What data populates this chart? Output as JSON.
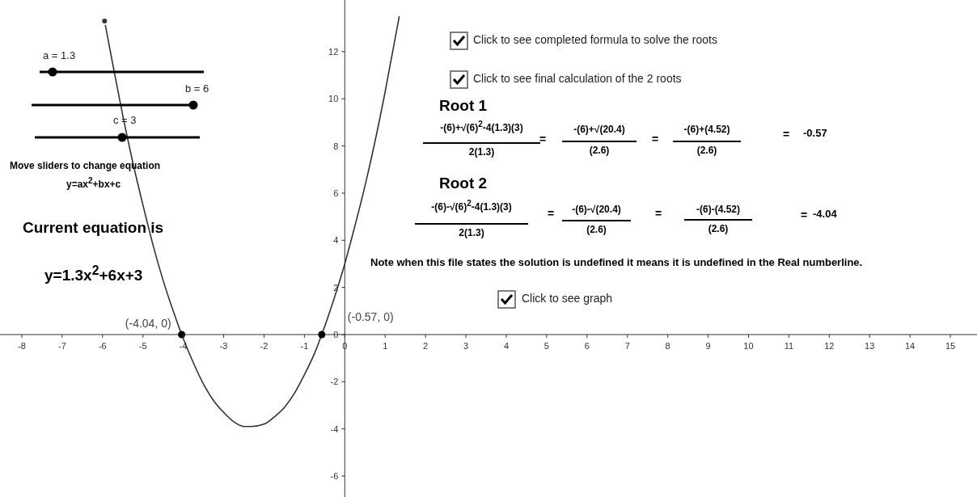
{
  "chart_data": {
    "type": "line",
    "xlim": [
      -8.54,
      15.66
    ],
    "ylim": [
      -6.89,
      14.19
    ],
    "xticks": [
      -8,
      -7,
      -6,
      -5,
      -4,
      -3,
      -2,
      -1,
      0,
      1,
      2,
      3,
      4,
      5,
      6,
      7,
      8,
      9,
      10,
      11,
      12,
      13,
      14,
      15
    ],
    "yticks": [
      -6,
      -4,
      -2,
      0,
      2,
      4,
      6,
      8,
      10,
      12
    ],
    "grid": false,
    "legend": false,
    "series": [
      {
        "color": "#333333",
        "marker": "none",
        "line_style": "solid",
        "x": [
          -5.95,
          -5.75,
          -5.5,
          -5.25,
          -5.0,
          -4.75,
          -4.5,
          -4.25,
          -4.04,
          -3.75,
          -3.5,
          -3.25,
          -3.0,
          -2.75,
          -2.5,
          -2.31,
          -2.0,
          -1.75,
          -1.5,
          -1.25,
          -1.0,
          -0.75,
          -0.57,
          -0.25,
          0,
          0.25,
          0.5,
          0.75,
          1.0,
          1.35
        ],
        "values": [
          13.3,
          11.5,
          9.3,
          7.3,
          5.5,
          3.8,
          2.3,
          1.0,
          0,
          -1.2,
          -2.1,
          -2.8,
          -3.3,
          -3.7,
          -3.9,
          -3.9,
          -3.8,
          -3.5,
          -3.1,
          -2.5,
          -1.7,
          -0.8,
          0,
          1.6,
          3,
          4.6,
          6.3,
          8.2,
          10.3,
          13.5
        ]
      },
      {
        "type": "scatter",
        "color": "#000000",
        "marker": "circle",
        "x": [
          -4.04,
          -0.57
        ],
        "values": [
          0,
          0
        ]
      }
    ],
    "annotations": [
      "a = 1.3",
      "b = 6",
      "c = 3",
      "Move sliders to change equation",
      "y=ax$^{2}$+bx+c",
      "Current equation is",
      "y=1.3x$^{2}$+6x+3",
      "Click to see completed formula to solve the roots",
      "Click to see final calculation of the 2 roots",
      "Root 1",
      "-(6)+√(6)$^{2}$-4(1.3)(3)",
      "2(1.3)",
      "=",
      "-(6)+√(20.4)",
      "(2.6)",
      "=",
      "-(6)+(4.52)",
      "(2.6)",
      "=",
      "-0.57",
      "Root 2",
      "-(6)-√(6)$^{2}$-4(1.3)(3)",
      "2(1.3)",
      "=",
      "-(6)-√(20.4)",
      "(2.6)",
      "=",
      "-(6)-(4.52)",
      "(2.6)",
      "=",
      "-4.04",
      "Note when this file states the solution is undefined it means it is undefined in the Real numberline.",
      "Click to see graph",
      {
        "text": "(-4.04, 0)",
        "x": -4.04,
        "y": 0
      },
      {
        "text": "(-0.57, 0)",
        "x": -0.57,
        "y": 0
      }
    ]
  }
}
